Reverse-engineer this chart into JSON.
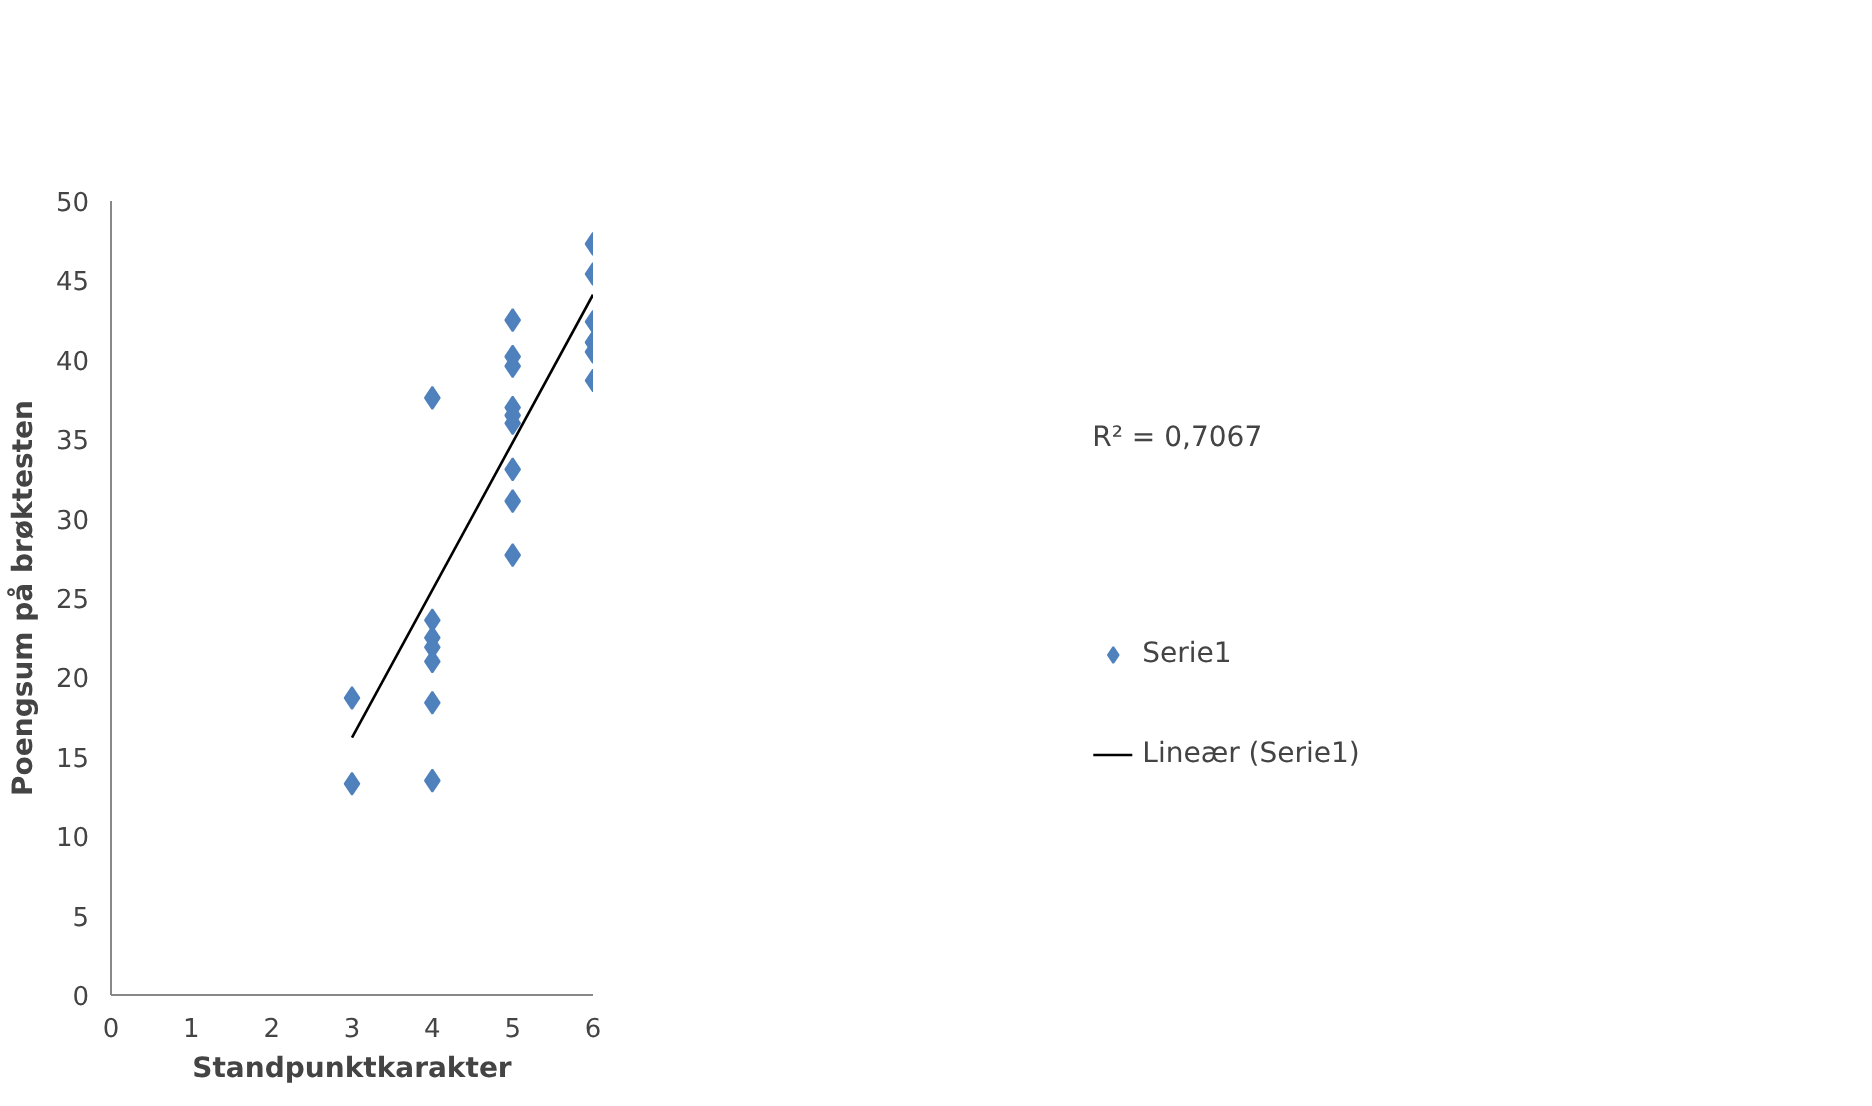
{
  "chart_data": {
    "type": "scatter",
    "xlabel": "Standpunktkarakter",
    "ylabel": "Poengsum på brøktesten",
    "xlim": [
      0,
      6
    ],
    "xticks": [
      0,
      1,
      2,
      3,
      4,
      5,
      6
    ],
    "ylim": [
      0,
      50
    ],
    "yticks": [
      0,
      5,
      10,
      15,
      20,
      25,
      30,
      35,
      40,
      45,
      50
    ],
    "grid": false,
    "legend": "right",
    "annotations": [
      "R² = 0,7067"
    ],
    "series": [
      {
        "name": "Serie1",
        "type": "scatter",
        "marker": "diamond",
        "color": "#4f81bd",
        "x": [
          3,
          3,
          4,
          4,
          4,
          4,
          4,
          4,
          4,
          5,
          5,
          5,
          5,
          5,
          5,
          5,
          5,
          5,
          6,
          6,
          6,
          6,
          6,
          6
        ],
        "values": [
          18.7,
          13.3,
          37.6,
          23.6,
          22.5,
          21.9,
          21.0,
          18.4,
          13.5,
          42.5,
          40.2,
          39.6,
          37.0,
          36.5,
          36.0,
          33.1,
          31.1,
          27.7,
          47.3,
          45.4,
          42.4,
          41.1,
          40.5,
          38.7
        ]
      },
      {
        "name": "Lineær (Serie1)",
        "type": "line",
        "marker": "none",
        "color": "#000000",
        "x": [
          3,
          6
        ],
        "values": [
          16.2,
          44.1
        ]
      }
    ]
  }
}
